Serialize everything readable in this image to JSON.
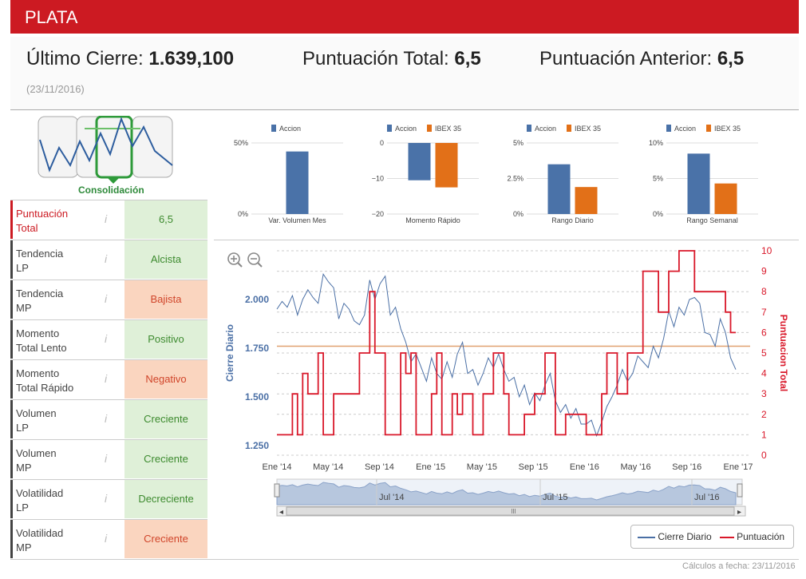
{
  "title": "PLATA",
  "summary": {
    "close_label": "Último Cierre:",
    "close_value": "1.639,100",
    "total_label": "Puntuación Total:",
    "total_value": "6,5",
    "prev_label": "Puntuación Anterior:",
    "prev_value": "6,5",
    "date": "(23/11/2016)"
  },
  "pattern": {
    "label": "Consolidación"
  },
  "scores": [
    {
      "label1": "Puntuación",
      "label2": "Total",
      "value": "6,5",
      "tone": "g",
      "highlight": true
    },
    {
      "label1": "Tendencia",
      "label2": "LP",
      "value": "Alcista",
      "tone": "g"
    },
    {
      "label1": "Tendencia",
      "label2": "MP",
      "value": "Bajista",
      "tone": "o"
    },
    {
      "label1": "Momento",
      "label2": "Total Lento",
      "value": "Positivo",
      "tone": "g"
    },
    {
      "label1": "Momento",
      "label2": "Total Rápido",
      "value": "Negativo",
      "tone": "o"
    },
    {
      "label1": "Volumen",
      "label2": "LP",
      "value": "Creciente",
      "tone": "g"
    },
    {
      "label1": "Volumen",
      "label2": "MP",
      "value": "Creciente",
      "tone": "g"
    },
    {
      "label1": "Volatilidad",
      "label2": "LP",
      "value": "Decreciente",
      "tone": "g"
    },
    {
      "label1": "Volatilidad",
      "label2": "MP",
      "value": "Creciente",
      "tone": "o"
    }
  ],
  "chart_data": [
    {
      "type": "bar",
      "title": "Var. Volumen Mes",
      "series": [
        {
          "name": "Accion",
          "values": [
            44
          ]
        }
      ],
      "yticks": [
        "50%",
        "0%"
      ],
      "ylim": [
        0,
        50
      ],
      "colors": [
        "#4a72a8"
      ]
    },
    {
      "type": "bar",
      "title": "Momento Rápido",
      "series": [
        {
          "name": "Accion",
          "values": [
            -10.5
          ]
        },
        {
          "name": "IBEX 35",
          "values": [
            -12.5
          ]
        }
      ],
      "yticks": [
        "0",
        "−10",
        "−20"
      ],
      "ylim": [
        -20,
        0
      ],
      "colors": [
        "#4a72a8",
        "#e27018"
      ]
    },
    {
      "type": "bar",
      "title": "Rango Diario",
      "series": [
        {
          "name": "Accion",
          "values": [
            3.5
          ]
        },
        {
          "name": "IBEX 35",
          "values": [
            1.9
          ]
        }
      ],
      "yticks": [
        "5%",
        "2.5%",
        "0%"
      ],
      "ylim": [
        0,
        5
      ],
      "colors": [
        "#4a72a8",
        "#e27018"
      ]
    },
    {
      "type": "bar",
      "title": "Rango Semanal",
      "series": [
        {
          "name": "Accion",
          "values": [
            8.5
          ]
        },
        {
          "name": "IBEX 35",
          "values": [
            4.3
          ]
        }
      ],
      "yticks": [
        "10%",
        "5%",
        "0%"
      ],
      "ylim": [
        0,
        10
      ],
      "colors": [
        "#4a72a8",
        "#e27018"
      ]
    },
    {
      "type": "line",
      "ylabel_left": "Cierre Diario",
      "ylabel_right": "Puntuacion Total",
      "yticks_left": [
        "2.000",
        "1.750",
        "1.500",
        "1.250"
      ],
      "yticks_right": [
        "10",
        "9",
        "8",
        "7",
        "6",
        "5",
        "4",
        "3",
        "2",
        "1",
        "0"
      ],
      "ylim_left": [
        1200,
        2250
      ],
      "ylim_right": [
        0,
        10
      ],
      "hline": 1760,
      "xticks": [
        "Ene '14",
        "May '14",
        "Sep '14",
        "Ene '15",
        "May '15",
        "Sep '15",
        "Ene '16",
        "May '16",
        "Sep '16",
        "Ene '17"
      ],
      "navigator_labels": [
        "Jul '14",
        "Jul '15",
        "Jul '16"
      ],
      "series": [
        {
          "name": "Cierre Diario",
          "color": "#4a6fa5",
          "values": [
            1950,
            1990,
            1960,
            2020,
            1920,
            2000,
            2050,
            2010,
            1980,
            2130,
            2090,
            2060,
            1900,
            1980,
            1950,
            1890,
            1870,
            1920,
            2100,
            2000,
            2080,
            2120,
            1920,
            1960,
            1850,
            1780,
            1680,
            1720,
            1650,
            1580,
            1700,
            1620,
            1590,
            1680,
            1600,
            1720,
            1780,
            1620,
            1640,
            1560,
            1620,
            1700,
            1650,
            1720,
            1640,
            1580,
            1600,
            1500,
            1560,
            1460,
            1520,
            1480,
            1560,
            1620,
            1480,
            1420,
            1460,
            1390,
            1440,
            1360,
            1360,
            1380,
            1300,
            1370,
            1450,
            1500,
            1560,
            1640,
            1580,
            1620,
            1710,
            1680,
            1650,
            1760,
            1700,
            1800,
            1940,
            1860,
            1960,
            1920,
            2000,
            2010,
            1980,
            1830,
            1820,
            1760,
            1900,
            1830,
            1700,
            1640
          ]
        },
        {
          "name": "Puntuación",
          "color": "#d9182a",
          "values": [
            1,
            1,
            1,
            3,
            1,
            4,
            3,
            3,
            5,
            1,
            1,
            3,
            3,
            3,
            3,
            3,
            5,
            5,
            8,
            5,
            5,
            1,
            1,
            1,
            5,
            4,
            5,
            1,
            1,
            1,
            3,
            5,
            1,
            1,
            3,
            2,
            3,
            3,
            1,
            1,
            3,
            3,
            5,
            5,
            3,
            1,
            1,
            1,
            2,
            2,
            3,
            3,
            5,
            5,
            1,
            1,
            2,
            2,
            2,
            2,
            1,
            1,
            1,
            3,
            5,
            5,
            3,
            3,
            5,
            5,
            5,
            9,
            9,
            9,
            7,
            7,
            9,
            9,
            10,
            10,
            10,
            8,
            8,
            8,
            8,
            8,
            8,
            7,
            6,
            6
          ]
        }
      ]
    }
  ],
  "legend": {
    "a": "Cierre Diario",
    "b": "Puntuación"
  },
  "footer": "Cálculos a fecha: 23/11/2016"
}
